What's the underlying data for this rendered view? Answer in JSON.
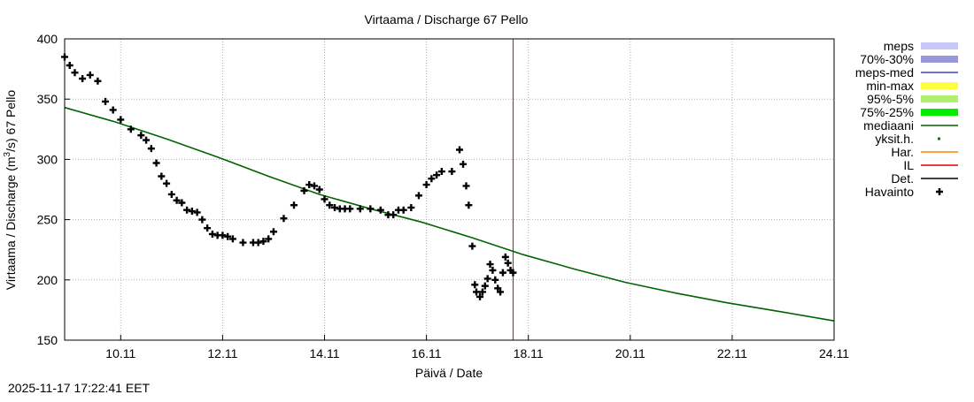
{
  "chart_data": {
    "type": "line",
    "title": "Virtaama / Discharge  67 Pello",
    "xlabel": "Päivä / Date",
    "ylabel": "Virtaama / Discharge (m³/s)  67 Pello",
    "ylabel_parts": [
      "Virtaama / Discharge (m",
      "3",
      "/s)  67 Pello"
    ],
    "xlim": [
      9.0,
      24.1
    ],
    "ylim": [
      150,
      400
    ],
    "grid": true,
    "x_unit": "day of November 2025",
    "x_ticks": [
      {
        "x": 10.1,
        "label": "10.11"
      },
      {
        "x": 12.1,
        "label": "12.11"
      },
      {
        "x": 14.1,
        "label": "14.11"
      },
      {
        "x": 16.1,
        "label": "16.11"
      },
      {
        "x": 18.1,
        "label": "18.11"
      },
      {
        "x": 20.1,
        "label": "20.11"
      },
      {
        "x": 22.1,
        "label": "22.11"
      },
      {
        "x": 24.1,
        "label": "24.11"
      }
    ],
    "y_ticks": [
      {
        "y": 150,
        "label": "150"
      },
      {
        "y": 200,
        "label": "200"
      },
      {
        "y": 250,
        "label": "250"
      },
      {
        "y": 300,
        "label": "300"
      },
      {
        "y": 350,
        "label": "350"
      },
      {
        "y": 400,
        "label": "400"
      }
    ],
    "now_marker_x": 17.8,
    "legend_position": "right",
    "legend": [
      {
        "label": "meps",
        "color": "#c8c8f8",
        "style": "band"
      },
      {
        "label": "70%-30%",
        "color": "#9898d8",
        "style": "band"
      },
      {
        "label": "meps-med",
        "color": "#4040d0",
        "style": "line"
      },
      {
        "label": "min-max",
        "color": "#ffff40",
        "style": "band"
      },
      {
        "label": "95%-5%",
        "color": "#b0f070",
        "style": "band"
      },
      {
        "label": "75%-25%",
        "color": "#00ee00",
        "style": "band"
      },
      {
        "label": "mediaani",
        "color": "#006400",
        "style": "line"
      },
      {
        "label": "yksit.h.",
        "color": "#008000",
        "style": "dot"
      },
      {
        "label": "Har.",
        "color": "#ff8000",
        "style": "line"
      },
      {
        "label": "IL",
        "color": "#e00000",
        "style": "line"
      },
      {
        "label": "Det.",
        "color": "#000000",
        "style": "line"
      },
      {
        "label": "Havainto",
        "color": "#000000",
        "style": "plus"
      }
    ],
    "series": [
      {
        "name": "mediaani",
        "color": "#006400",
        "x": [
          9.0,
          10.0,
          11.0,
          12.0,
          13.0,
          14.0,
          15.0,
          16.0,
          17.0,
          18.0,
          19.0,
          20.0,
          21.0,
          22.0,
          23.0,
          24.1
        ],
        "y": [
          343,
          331,
          317,
          302,
          286,
          271,
          259,
          248,
          235,
          221,
          209,
          198,
          189,
          181,
          174,
          166
        ]
      },
      {
        "name": "Havainto",
        "color": "#000000",
        "marker": "plus",
        "x": [
          9.0,
          9.1,
          9.2,
          9.35,
          9.5,
          9.65,
          9.8,
          9.95,
          10.1,
          10.3,
          10.5,
          10.6,
          10.7,
          10.8,
          10.9,
          11.0,
          11.1,
          11.2,
          11.3,
          11.4,
          11.5,
          11.6,
          11.7,
          11.8,
          11.9,
          12.0,
          12.1,
          12.2,
          12.3,
          12.5,
          12.7,
          12.8,
          12.9,
          13.0,
          13.1,
          13.3,
          13.5,
          13.7,
          13.8,
          13.9,
          14.0,
          14.1,
          14.2,
          14.3,
          14.4,
          14.5,
          14.6,
          14.8,
          15.0,
          15.2,
          15.35,
          15.45,
          15.55,
          15.65,
          15.8,
          15.95,
          16.1,
          16.2,
          16.3,
          16.4,
          16.6,
          16.75,
          16.82,
          16.88,
          16.93,
          17.0,
          17.05,
          17.08,
          17.15,
          17.2,
          17.25,
          17.3,
          17.35,
          17.4,
          17.45,
          17.5,
          17.55,
          17.6,
          17.65,
          17.7,
          17.75,
          17.8
        ],
        "y": [
          385,
          378,
          372,
          367,
          370,
          365,
          348,
          341,
          333,
          325,
          320,
          316,
          309,
          297,
          286,
          280,
          271,
          266,
          264,
          258,
          257,
          256,
          250,
          243,
          238,
          237,
          237,
          236,
          234,
          231,
          231,
          231,
          232,
          234,
          240,
          251,
          262,
          274,
          279,
          278,
          275,
          267,
          262,
          260,
          259,
          259,
          259,
          259,
          259,
          258,
          254,
          254,
          258,
          258,
          260,
          270,
          279,
          284,
          287,
          290,
          290,
          308,
          296,
          278,
          262,
          228,
          196,
          190,
          186,
          190,
          195,
          201,
          213,
          208,
          200,
          193,
          190,
          206,
          219,
          214,
          208,
          206
        ]
      }
    ]
  },
  "footer": {
    "timestamp": "2025-11-17 17:22:41 EET"
  }
}
